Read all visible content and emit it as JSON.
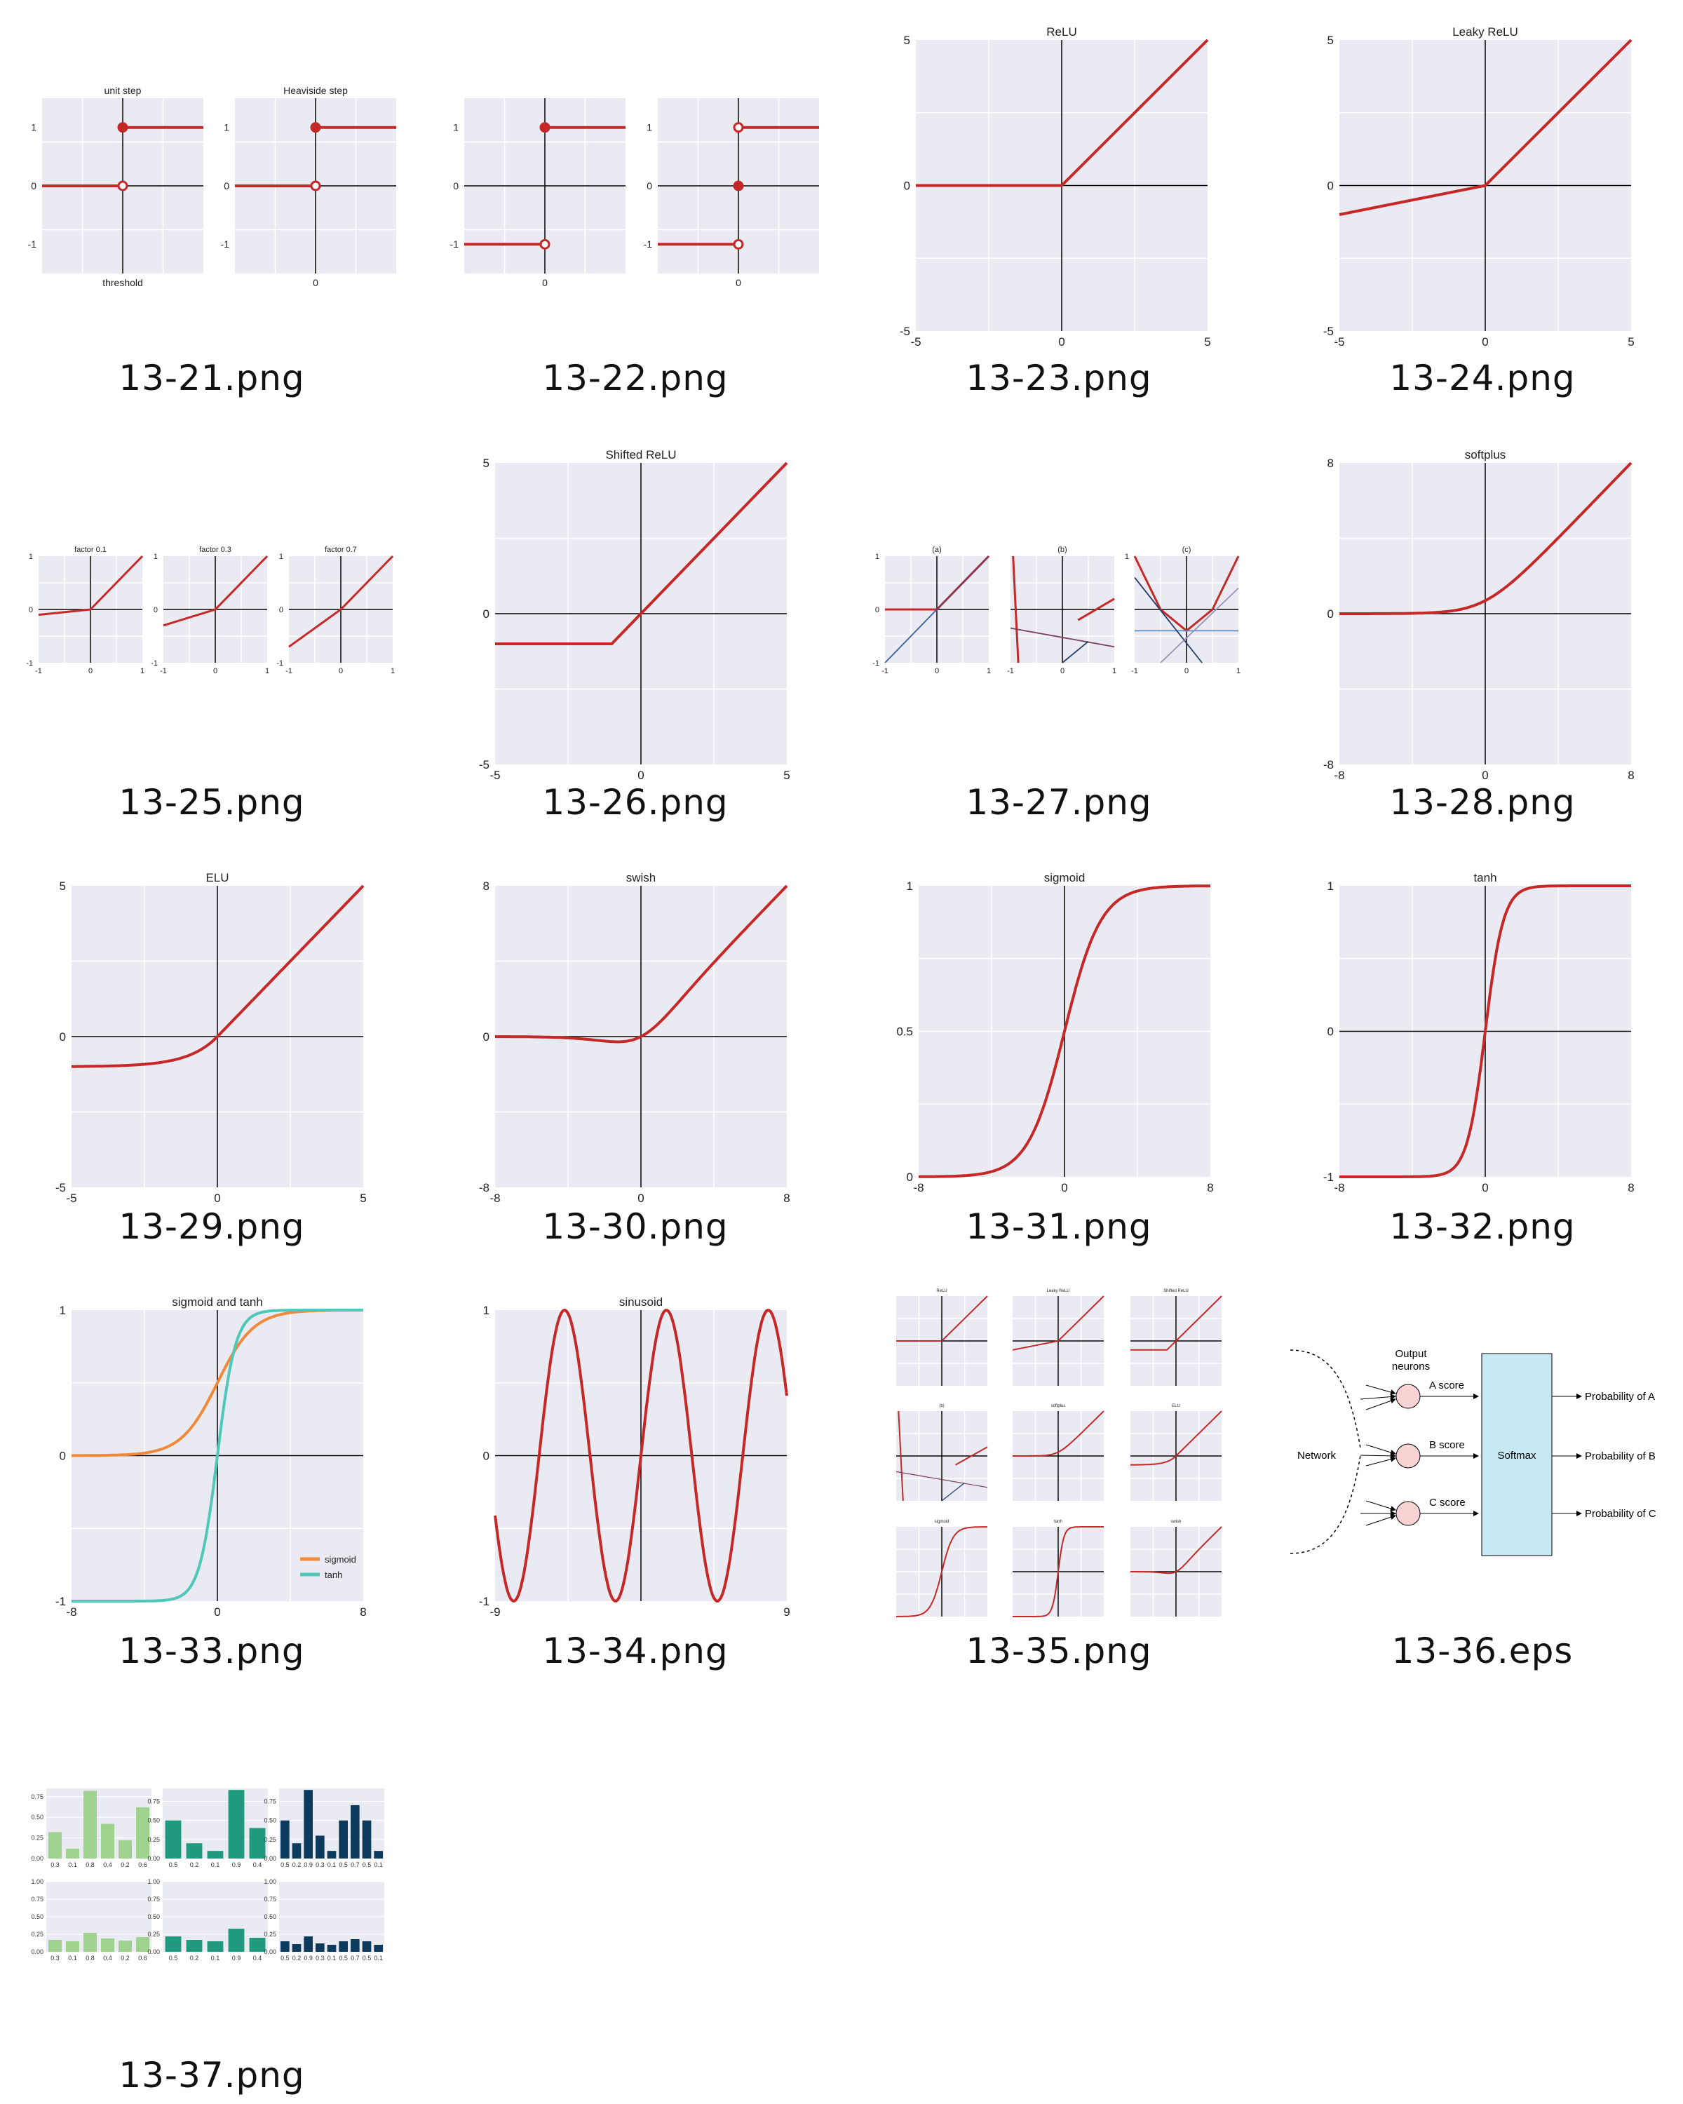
{
  "colors": {
    "plot_bg": "#EAEAF2",
    "grid": "#FFFFFF",
    "curve": "#C62828",
    "axis": "#000000",
    "orange": "#F08A3A",
    "teal": "#4FC7B9",
    "light_blue": "#C7E9F3",
    "green_light": "#9FD28F",
    "green_teal": "#1F9A7E",
    "navy": "#0D3B5E"
  },
  "captions": [
    "13-21.png",
    "13-22.png",
    "13-23.png",
    "13-24.png",
    "13-25.png",
    "13-26.png",
    "13-27.png",
    "13-28.png",
    "13-29.png",
    "13-30.png",
    "13-31.png",
    "13-32.png",
    "13-33.png",
    "13-34.png",
    "13-35.png",
    "13-36.eps",
    "13-37.png"
  ],
  "chart_data": [
    {
      "id": "13-21a",
      "type": "line",
      "title": "unit step",
      "xlabel": "threshold",
      "yticks": [
        "1",
        "0",
        "-1"
      ],
      "ylim": [
        -1.5,
        1.5
      ],
      "xlim": [
        -1,
        1
      ],
      "series": [
        {
          "x": [
            -1,
            0
          ],
          "y": [
            0,
            0
          ]
        },
        {
          "x": [
            0,
            1
          ],
          "y": [
            1,
            1
          ]
        }
      ],
      "points": [
        {
          "x": 0,
          "y": 1,
          "filled": true
        },
        {
          "x": 0,
          "y": 0,
          "filled": false
        }
      ]
    },
    {
      "id": "13-21b",
      "type": "line",
      "title": "Heaviside step",
      "xticks": [
        "0"
      ],
      "yticks": [
        "1",
        "0",
        "-1"
      ],
      "ylim": [
        -1.5,
        1.5
      ],
      "xlim": [
        -1,
        1
      ],
      "series": [
        {
          "x": [
            -1,
            0
          ],
          "y": [
            0,
            0
          ]
        },
        {
          "x": [
            0,
            1
          ],
          "y": [
            1,
            1
          ]
        }
      ],
      "points": [
        {
          "x": 0,
          "y": 1,
          "filled": true
        },
        {
          "x": 0,
          "y": 0,
          "filled": false
        }
      ]
    },
    {
      "id": "13-22a",
      "type": "line",
      "xticks": [
        "0"
      ],
      "yticks": [
        "1",
        "0",
        "-1"
      ],
      "ylim": [
        -1.5,
        1.5
      ],
      "xlim": [
        -1,
        1
      ],
      "series": [
        {
          "x": [
            -1,
            0
          ],
          "y": [
            -1,
            -1
          ]
        },
        {
          "x": [
            0,
            1
          ],
          "y": [
            1,
            1
          ]
        }
      ],
      "points": [
        {
          "x": 0,
          "y": 1,
          "filled": true
        },
        {
          "x": 0,
          "y": -1,
          "filled": false
        }
      ]
    },
    {
      "id": "13-22b",
      "type": "line",
      "xticks": [
        "0"
      ],
      "yticks": [
        "1",
        "0",
        "-1"
      ],
      "ylim": [
        -1.5,
        1.5
      ],
      "xlim": [
        -1,
        1
      ],
      "series": [
        {
          "x": [
            -1,
            0
          ],
          "y": [
            -1,
            -1
          ]
        },
        {
          "x": [
            0,
            1
          ],
          "y": [
            1,
            1
          ]
        }
      ],
      "points": [
        {
          "x": 0,
          "y": 1,
          "filled": false
        },
        {
          "x": 0,
          "y": 0,
          "filled": true
        },
        {
          "x": 0,
          "y": -1,
          "filled": false
        }
      ]
    },
    {
      "id": "13-23",
      "type": "line",
      "title": "ReLU",
      "xlim": [
        -5,
        5
      ],
      "ylim": [
        -5,
        5
      ],
      "xticks": [
        "-5",
        "0",
        "5"
      ],
      "yticks": [
        "5",
        "0",
        "-5"
      ],
      "series": [
        {
          "x": [
            -5,
            0,
            5
          ],
          "y": [
            0,
            0,
            5
          ]
        }
      ]
    },
    {
      "id": "13-24",
      "type": "line",
      "title": "Leaky ReLU",
      "xlim": [
        -5,
        5
      ],
      "ylim": [
        -5,
        5
      ],
      "xticks": [
        "-5",
        "0",
        "5"
      ],
      "yticks": [
        "5",
        "0",
        "-5"
      ],
      "series": [
        {
          "x": [
            -5,
            0,
            5
          ],
          "y": [
            -1,
            0,
            5
          ]
        }
      ]
    },
    {
      "id": "13-25a",
      "type": "line",
      "title": "factor 0.1",
      "xlim": [
        -1,
        1
      ],
      "ylim": [
        -1,
        1
      ],
      "xticks": [
        "-1",
        "0",
        "1"
      ],
      "yticks": [
        "1",
        "0",
        "-1"
      ],
      "series": [
        {
          "x": [
            -1,
            0,
            1
          ],
          "y": [
            -0.1,
            0,
            1
          ]
        }
      ]
    },
    {
      "id": "13-25b",
      "type": "line",
      "title": "factor 0.3",
      "xlim": [
        -1,
        1
      ],
      "ylim": [
        -1,
        1
      ],
      "xticks": [
        "-1",
        "0",
        "1"
      ],
      "yticks": [
        "1",
        "0",
        "-1"
      ],
      "series": [
        {
          "x": [
            -1,
            0,
            1
          ],
          "y": [
            -0.3,
            0,
            1
          ]
        }
      ]
    },
    {
      "id": "13-25c",
      "type": "line",
      "title": "factor 0.7",
      "xlim": [
        -1,
        1
      ],
      "ylim": [
        -1,
        1
      ],
      "xticks": [
        "-1",
        "0",
        "1"
      ],
      "yticks": [
        "1",
        "0",
        "-1"
      ],
      "series": [
        {
          "x": [
            -1,
            0,
            1
          ],
          "y": [
            -0.7,
            0,
            1
          ]
        }
      ]
    },
    {
      "id": "13-26",
      "type": "line",
      "title": "Shifted ReLU",
      "xlim": [
        -5,
        5
      ],
      "ylim": [
        -5,
        5
      ],
      "xticks": [
        "-5",
        "0",
        "5"
      ],
      "yticks": [
        "5",
        "0",
        "-5"
      ],
      "series": [
        {
          "x": [
            -5,
            -1,
            5
          ],
          "y": [
            -1,
            -1,
            5
          ]
        }
      ]
    },
    {
      "id": "13-27a",
      "type": "line",
      "title": "(a)",
      "xlim": [
        -1,
        1
      ],
      "ylim": [
        -1,
        1
      ],
      "xticks": [
        "-1",
        "0",
        "1"
      ],
      "yticks": [
        "1",
        "0",
        "-1"
      ],
      "series": [
        {
          "x": [
            -1,
            0,
            1
          ],
          "y": [
            0,
            0,
            1
          ]
        },
        {
          "x": [
            -1,
            1
          ],
          "y": [
            -1,
            1
          ],
          "color": "#3B5F9E"
        },
        {
          "x": [
            0,
            1
          ],
          "y": [
            0,
            1
          ],
          "color": "#7A3B5E"
        }
      ]
    },
    {
      "id": "13-27b",
      "type": "line",
      "title": "(b)",
      "xlim": [
        -1,
        1
      ],
      "ylim": [
        -1,
        1
      ],
      "xticks": [
        "-1",
        "0",
        "1"
      ],
      "yticks": [],
      "series": [
        {
          "x": [
            -0.95,
            -0.85
          ],
          "y": [
            1,
            -1
          ]
        },
        {
          "x": [
            -1,
            1
          ],
          "y": [
            -0.35,
            -0.7
          ],
          "color": "#7A3B5E"
        },
        {
          "x": [
            0.3,
            1
          ],
          "y": [
            -0.2,
            0.2
          ]
        },
        {
          "x": [
            0,
            0.5
          ],
          "y": [
            -1,
            -0.6
          ],
          "color": "#223B6E"
        }
      ]
    },
    {
      "id": "13-27c",
      "type": "line",
      "title": "(c)",
      "xlim": [
        -1,
        1
      ],
      "ylim": [
        -1,
        1
      ],
      "xticks": [
        "-1",
        "0",
        "1"
      ],
      "yticks": [
        "1"
      ],
      "series": [
        {
          "x": [
            -1,
            -0.5,
            0,
            0.5,
            1
          ],
          "y": [
            1,
            0,
            -0.4,
            0,
            1
          ]
        },
        {
          "x": [
            -1,
            1
          ],
          "y": [
            -0.4,
            -0.4
          ],
          "color": "#5A8FC0"
        },
        {
          "x": [
            -1,
            0.3
          ],
          "y": [
            0.6,
            -1
          ],
          "color": "#223B6E"
        },
        {
          "x": [
            -0.5,
            1
          ],
          "y": [
            -1,
            0.4
          ],
          "color": "#9E8FB8"
        }
      ]
    },
    {
      "id": "13-28",
      "type": "line",
      "fn": "softplus",
      "title": "softplus",
      "xlim": [
        -8,
        8
      ],
      "ylim": [
        -8,
        8
      ],
      "xticks": [
        "-8",
        "0",
        "8"
      ],
      "yticks": [
        "8",
        "0",
        "-8"
      ]
    },
    {
      "id": "13-29",
      "type": "line",
      "fn": "elu",
      "title": "ELU",
      "xlim": [
        -5,
        5
      ],
      "ylim": [
        -5,
        5
      ],
      "xticks": [
        "-5",
        "0",
        "5"
      ],
      "yticks": [
        "5",
        "0",
        "-5"
      ]
    },
    {
      "id": "13-30",
      "type": "line",
      "fn": "swish",
      "title": "swish",
      "xlim": [
        -8,
        8
      ],
      "ylim": [
        -8,
        8
      ],
      "xticks": [
        "-8",
        "0",
        "8"
      ],
      "yticks": [
        "8",
        "0",
        "-8"
      ]
    },
    {
      "id": "13-31",
      "type": "line",
      "fn": "sigmoid",
      "title": "sigmoid",
      "xlim": [
        -8,
        8
      ],
      "ylim": [
        0,
        1
      ],
      "xticks": [
        "-8",
        "0",
        "8"
      ],
      "yticks": [
        "1",
        "0.5",
        "0"
      ]
    },
    {
      "id": "13-32",
      "type": "line",
      "fn": "tanh",
      "title": "tanh",
      "xlim": [
        -8,
        8
      ],
      "ylim": [
        -1,
        1
      ],
      "xticks": [
        "-8",
        "0",
        "8"
      ],
      "yticks": [
        "1",
        "0",
        "-1"
      ]
    },
    {
      "id": "13-33",
      "type": "line",
      "title": "sigmoid and tanh",
      "xlim": [
        -8,
        8
      ],
      "ylim": [
        -1,
        1
      ],
      "xticks": [
        "-8",
        "0",
        "8"
      ],
      "yticks": [
        "1",
        "0",
        "-1"
      ],
      "legend": "bottom-right",
      "series": [
        {
          "name": "sigmoid",
          "fn": "sigmoid"
        },
        {
          "name": "tanh",
          "fn": "tanh"
        }
      ]
    },
    {
      "id": "13-34",
      "type": "line",
      "fn": "sin",
      "title": "sinusoid",
      "xlim": [
        -9,
        9
      ],
      "ylim": [
        -1,
        1
      ],
      "xticks": [
        "-9",
        "9"
      ],
      "yticks": [
        "1",
        "0",
        "-1"
      ]
    },
    {
      "id": "13-37",
      "type": "bar",
      "panels": [
        {
          "categories": [
            "0.3",
            "0.1",
            "0.8",
            "0.4",
            "0.2",
            "0.6"
          ],
          "values": [
            0.32,
            0.12,
            0.82,
            0.42,
            0.22,
            0.62
          ],
          "ylim": [
            0,
            0.85
          ],
          "yticks": [
            "0.75",
            "0.50",
            "0.25",
            "0.00"
          ]
        },
        {
          "categories": [
            "0.5",
            "0.2",
            "0.1",
            "0.9",
            "0.4"
          ],
          "values": [
            0.5,
            0.2,
            0.1,
            0.9,
            0.4
          ],
          "ylim": [
            0,
            0.92
          ],
          "yticks": [
            "0.75",
            "0.50",
            "0.25",
            "0.00"
          ]
        },
        {
          "categories": [
            "0.5",
            "0.2",
            "0.9",
            "0.3",
            "0.1",
            "0.5",
            "0.7",
            "0.5",
            "0.1"
          ],
          "values": [
            0.5,
            0.2,
            0.9,
            0.3,
            0.1,
            0.5,
            0.7,
            0.5,
            0.1
          ],
          "ylim": [
            0,
            0.92
          ],
          "yticks": [
            "0.75",
            "0.50",
            "0.25",
            "0.00"
          ]
        },
        {
          "categories": [
            "0.3",
            "0.1",
            "0.8",
            "0.4",
            "0.2",
            "0.6"
          ],
          "values": [
            0.17,
            0.15,
            0.27,
            0.19,
            0.16,
            0.21
          ],
          "ylim": [
            0,
            1
          ],
          "yticks": [
            "1.00",
            "0.75",
            "0.50",
            "0.25",
            "0.00"
          ]
        },
        {
          "categories": [
            "0.5",
            "0.2",
            "0.1",
            "0.9",
            "0.4"
          ],
          "values": [
            0.22,
            0.17,
            0.15,
            0.33,
            0.2
          ],
          "ylim": [
            0,
            1
          ],
          "yticks": [
            "1.00",
            "0.75",
            "0.50",
            "0.25",
            "0.00"
          ]
        },
        {
          "categories": [
            "0.5",
            "0.2",
            "0.9",
            "0.3",
            "0.1",
            "0.5",
            "0.7",
            "0.5",
            "0.1"
          ],
          "values": [
            0.15,
            0.11,
            0.22,
            0.12,
            0.1,
            0.15,
            0.18,
            0.15,
            0.1
          ],
          "ylim": [
            0,
            1
          ],
          "yticks": [
            "1.00",
            "0.75",
            "0.50",
            "0.25",
            "0.00"
          ]
        }
      ]
    }
  ],
  "softmax_diagram": {
    "network_label": "Network",
    "output_label": "Output\nneurons",
    "scores": [
      "A score",
      "B score",
      "C score"
    ],
    "softmax_label": "Softmax",
    "outputs": [
      "Probability of A",
      "Probability of B",
      "Probability of C"
    ]
  }
}
